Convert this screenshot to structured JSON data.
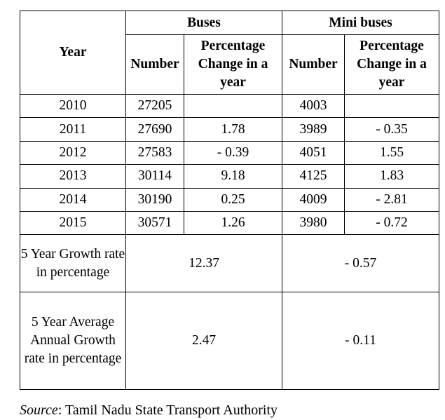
{
  "title_fragment": "",
  "headers": {
    "year": "Year",
    "buses": "Buses",
    "mini_buses": "Mini buses",
    "number": "Number",
    "percentage_change": "Percentage Change in a year"
  },
  "rows": [
    {
      "year": "2010",
      "bus_number": "27205",
      "bus_change": "",
      "mini_number": "4003",
      "mini_change": ""
    },
    {
      "year": "2011",
      "bus_number": "27690",
      "bus_change": "1.78",
      "mini_number": "3989",
      "mini_change": "- 0.35"
    },
    {
      "year": "2012",
      "bus_number": "27583",
      "bus_change": "- 0.39",
      "mini_number": "4051",
      "mini_change": "1.55"
    },
    {
      "year": "2013",
      "bus_number": "30114",
      "bus_change": "9.18",
      "mini_number": "4125",
      "mini_change": "1.83"
    },
    {
      "year": "2014",
      "bus_number": "30190",
      "bus_change": "0.25",
      "mini_number": "4009",
      "mini_change": "- 2.81"
    },
    {
      "year": "2015",
      "bus_number": "30571",
      "bus_change": "1.26",
      "mini_number": "3980",
      "mini_change": "- 0.72"
    }
  ],
  "growth": {
    "label": "5 Year Growth rate in percentage",
    "buses": "12.37",
    "mini_buses": "- 0.57"
  },
  "average_growth": {
    "label": "5 Year Average Annual Growth rate in percentage",
    "buses": "2.47",
    "mini_buses": "- 0.11"
  },
  "source": {
    "label": "Source",
    "text": ":  Tamil Nadu State Transport Authority"
  }
}
